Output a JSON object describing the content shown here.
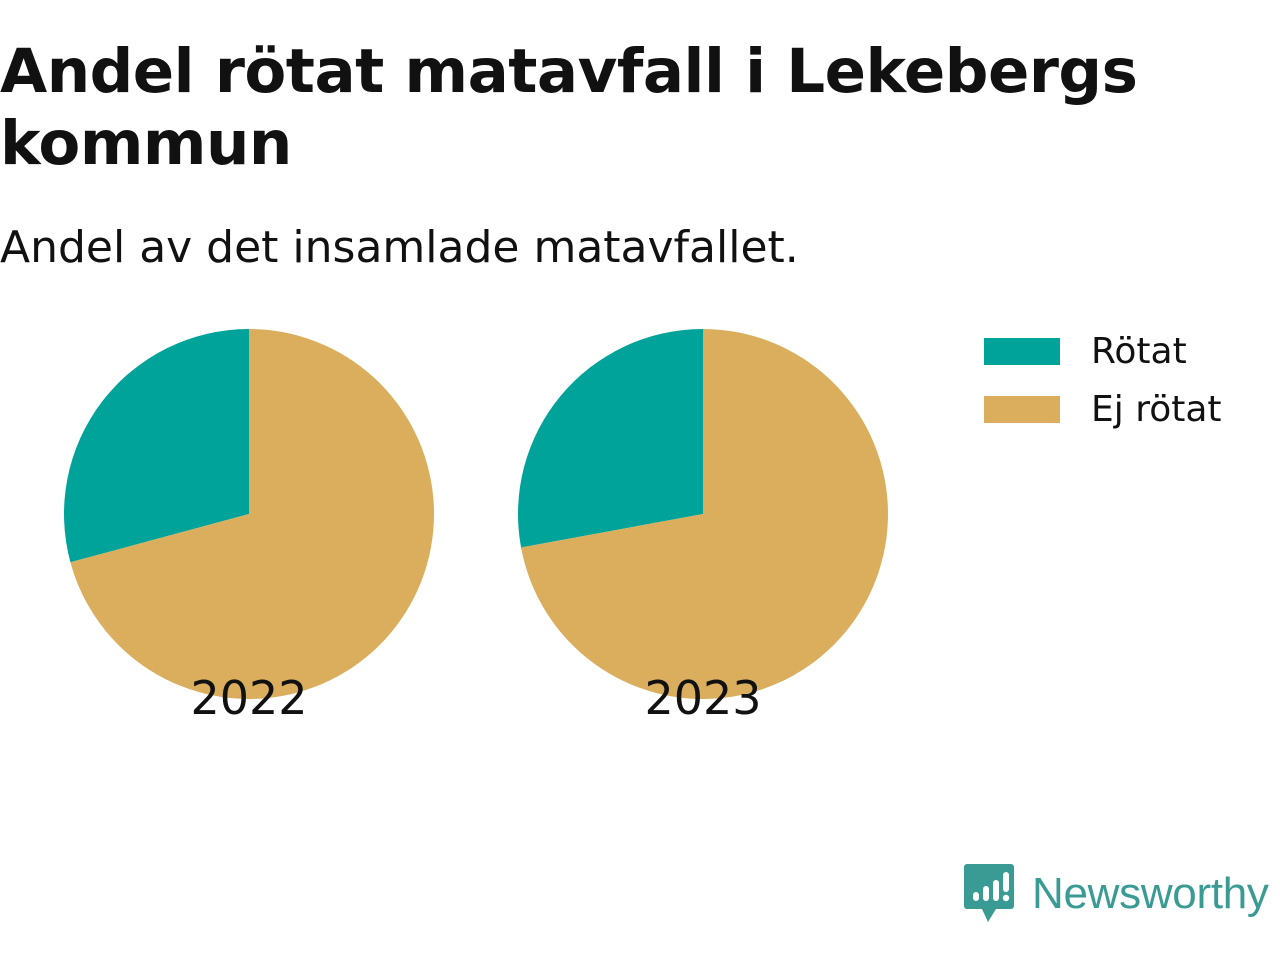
{
  "header": {
    "title": "Andel rötat matavfall i Lekebergs kommun",
    "subtitle": "Andel av det insamlade matavfallet."
  },
  "legend": [
    {
      "label": "Rötat",
      "color": "#00a39a"
    },
    {
      "label": "Ej rötat",
      "color": "#daae5d"
    }
  ],
  "chart_data": [
    {
      "type": "pie",
      "title": "2022",
      "categories": [
        "Rötat",
        "Ej rötat"
      ],
      "values": [
        29.2,
        70.8
      ],
      "colors": [
        "#00a39a",
        "#daae5d"
      ]
    },
    {
      "type": "pie",
      "title": "2023",
      "categories": [
        "Rötat",
        "Ej rötat"
      ],
      "values": [
        27.9,
        72.1
      ],
      "colors": [
        "#00a39a",
        "#daae5d"
      ]
    }
  ],
  "branding": {
    "name": "Newsworthy",
    "color": "#3a9b94",
    "icon": "newsworthy-logo-icon"
  }
}
